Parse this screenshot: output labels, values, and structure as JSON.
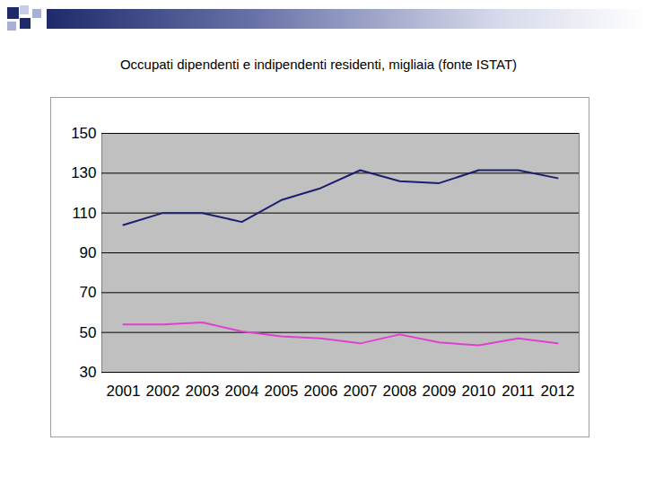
{
  "chart_data": {
    "type": "line",
    "title": "Occupati dipendenti e indipendenti residenti, migliaia (fonte ISTAT)",
    "categories": [
      "2001",
      "2002",
      "2003",
      "2004",
      "2005",
      "2006",
      "2007",
      "2008",
      "2009",
      "2010",
      "2011",
      "2012"
    ],
    "series": [
      {
        "color": "#1a1f6e",
        "values": [
          104,
          110,
          110,
          105.5,
          116.5,
          122.5,
          131.5,
          126,
          125,
          131.5,
          131.5,
          127.5
        ]
      },
      {
        "color": "#e040d0",
        "values": [
          54,
          54,
          55,
          50.5,
          48,
          47,
          44.5,
          49,
          45,
          43.5,
          47,
          44.5
        ]
      }
    ],
    "ylim": [
      30,
      150
    ],
    "yticks": [
      30,
      50,
      70,
      90,
      110,
      130,
      150
    ],
    "grid": true
  }
}
